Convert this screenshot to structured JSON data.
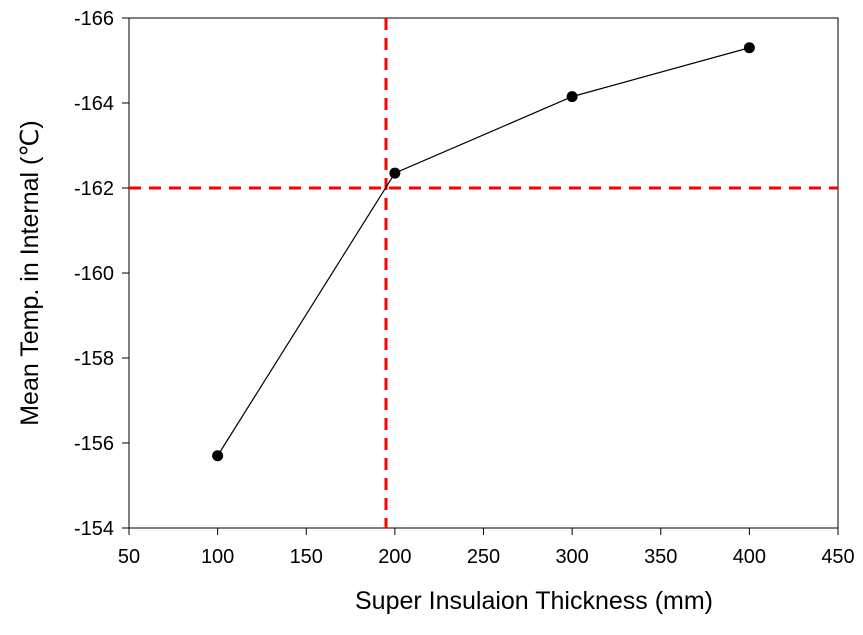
{
  "chart_data": {
    "type": "line",
    "title": "",
    "xlabel": "Super Insulaion Thickness (mm)",
    "ylabel": "Mean Temp. in Internal (℃)",
    "xlim": [
      50,
      450
    ],
    "ylim": [
      -154,
      -166
    ],
    "y_axis_inverted": true,
    "xticks": [
      50,
      100,
      150,
      200,
      250,
      300,
      350,
      400,
      450
    ],
    "yticks": [
      -166,
      -164,
      -162,
      -160,
      -158,
      -156,
      -154
    ],
    "grid": false,
    "series": [
      {
        "x": [
          100,
          200,
          300,
          400
        ],
        "y": [
          -155.7,
          -162.35,
          -164.15,
          -165.3
        ],
        "color": "#000000",
        "marker": "circle"
      }
    ],
    "reference_lines": [
      {
        "orientation": "vertical",
        "x": 195,
        "color": "#ff0000",
        "style": "dashed"
      },
      {
        "orientation": "horizontal",
        "y": -162,
        "color": "#ff0000",
        "style": "dashed"
      }
    ]
  }
}
